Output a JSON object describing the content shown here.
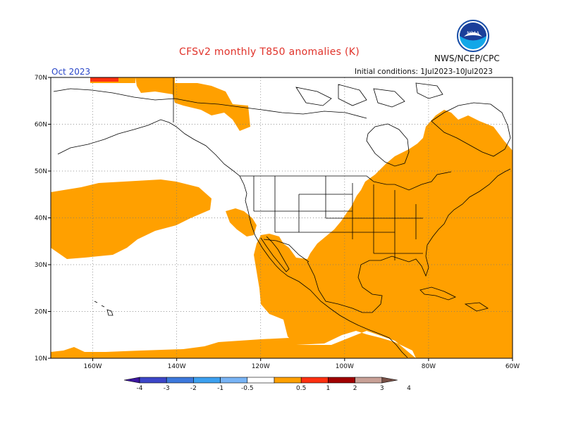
{
  "header": {
    "title": "CFSv2 monthly T850 anomalies (K)",
    "month": "Oct 2023",
    "agency": "NWS/NCEP/CPC",
    "initial_conditions": "Initial conditions: 1Jul2023-10Jul2023",
    "logo_text": "NOAA"
  },
  "map": {
    "projection": "cylindrical",
    "lon_range": [
      -170,
      -60
    ],
    "lat_range": [
      10,
      70
    ],
    "lon_ticks": [
      {
        "lon": -160,
        "label": "160W"
      },
      {
        "lon": -140,
        "label": "140W"
      },
      {
        "lon": -120,
        "label": "120W"
      },
      {
        "lon": -100,
        "label": "100W"
      },
      {
        "lon": -80,
        "label": "80W"
      },
      {
        "lon": -60,
        "label": "60W"
      }
    ],
    "lat_ticks": [
      {
        "lat": 10,
        "label": "10N"
      },
      {
        "lat": 20,
        "label": "20N"
      },
      {
        "lat": 30,
        "label": "30N"
      },
      {
        "lat": 40,
        "label": "40N"
      },
      {
        "lat": 50,
        "label": "50N"
      },
      {
        "lat": 60,
        "label": "60N"
      },
      {
        "lat": 70,
        "label": "70N"
      }
    ],
    "gridlines": true,
    "anomaly_regions": [
      {
        "name": "north-pacific-warm-region",
        "bin": "0.5-1",
        "color": "#ffa000"
      },
      {
        "name": "north-canada-warm-region",
        "bin": "0.5-1",
        "color": "#ffa000"
      },
      {
        "name": "alaska-warm-region",
        "bin": "0.5-1",
        "color": "#ffa000"
      },
      {
        "name": "eastern-north-america-warm-region",
        "bin": "0.5-1",
        "color": "#ffa000"
      },
      {
        "name": "arctic-strong-warm-region",
        "bin": "1-2",
        "color": "#ff3010"
      }
    ]
  },
  "colorbar": {
    "colors": [
      "#3c16a0",
      "#3c46c8",
      "#3c78dc",
      "#3ca0f0",
      "#78b4f5",
      "#ffffff",
      "#ffa000",
      "#ff3010",
      "#a00000",
      "#c8a096",
      "#785046"
    ],
    "labels": [
      "-4",
      "-3",
      "-2",
      "-1",
      "-0.5",
      "0.5",
      "1",
      "2",
      "3",
      "4"
    ]
  }
}
